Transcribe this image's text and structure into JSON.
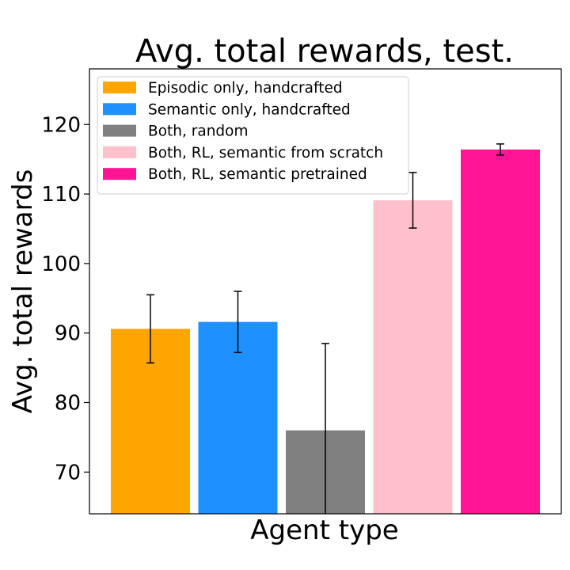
{
  "chart_data": {
    "type": "bar",
    "title": "Avg. total rewards, test.",
    "xlabel": "Agent type",
    "ylabel": "Avg. total rewards",
    "ylim": [
      64,
      128
    ],
    "yticks": [
      70,
      80,
      90,
      100,
      110,
      120
    ],
    "grid": false,
    "legend_position": "top-left",
    "series": [
      {
        "name": "Episodic only, handcrafted",
        "value": 90.6,
        "error": 4.9,
        "color": "#FFA500"
      },
      {
        "name": "Semantic only, handcrafted",
        "value": 91.6,
        "error": 4.4,
        "color": "#1E90FF"
      },
      {
        "name": "Both, random",
        "value": 76.0,
        "error": 12.5,
        "color": "#808080"
      },
      {
        "name": "Both, RL, semantic from scratch",
        "value": 109.1,
        "error": 4.0,
        "color": "#FFC0CB"
      },
      {
        "name": "Both, RL, semantic pretrained",
        "value": 116.4,
        "error": 0.8,
        "color": "#FF1493"
      }
    ]
  }
}
